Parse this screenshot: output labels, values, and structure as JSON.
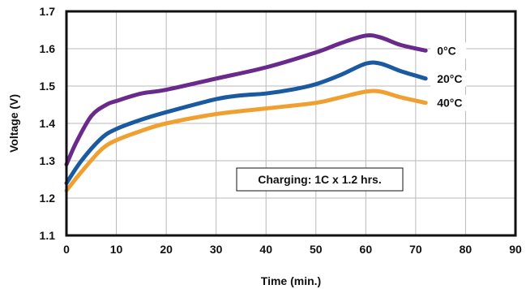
{
  "chart_data": {
    "type": "line",
    "xlabel": "Time (min.)",
    "ylabel": "Voltage (V)",
    "xlim": [
      0,
      90
    ],
    "ylim": [
      1.1,
      1.7
    ],
    "x_ticks": [
      "0",
      "10",
      "20",
      "30",
      "40",
      "50",
      "60",
      "70",
      "80",
      "90"
    ],
    "y_ticks": [
      "1.1",
      "1.2",
      "1.3",
      "1.4",
      "1.5",
      "1.6",
      "1.7"
    ],
    "grid": true,
    "annotation": "Charging: 1C x 1.2 hrs.",
    "series": [
      {
        "name": "0°C",
        "color": "#6a2a8c",
        "points": [
          [
            0,
            1.29
          ],
          [
            2,
            1.35
          ],
          [
            5,
            1.42
          ],
          [
            8,
            1.45
          ],
          [
            10,
            1.46
          ],
          [
            15,
            1.48
          ],
          [
            20,
            1.49
          ],
          [
            30,
            1.52
          ],
          [
            40,
            1.55
          ],
          [
            50,
            1.59
          ],
          [
            55,
            1.615
          ],
          [
            60,
            1.635
          ],
          [
            63,
            1.63
          ],
          [
            67,
            1.61
          ],
          [
            72,
            1.595
          ]
        ]
      },
      {
        "name": "20°C",
        "color": "#1a5aa0",
        "points": [
          [
            0,
            1.24
          ],
          [
            3,
            1.3
          ],
          [
            7,
            1.36
          ],
          [
            10,
            1.385
          ],
          [
            15,
            1.41
          ],
          [
            20,
            1.43
          ],
          [
            30,
            1.465
          ],
          [
            35,
            1.475
          ],
          [
            40,
            1.48
          ],
          [
            45,
            1.49
          ],
          [
            50,
            1.505
          ],
          [
            55,
            1.53
          ],
          [
            60,
            1.56
          ],
          [
            63,
            1.56
          ],
          [
            67,
            1.54
          ],
          [
            72,
            1.52
          ]
        ]
      },
      {
        "name": "40°C",
        "color": "#f0a030",
        "points": [
          [
            0,
            1.22
          ],
          [
            3,
            1.27
          ],
          [
            7,
            1.33
          ],
          [
            10,
            1.355
          ],
          [
            15,
            1.38
          ],
          [
            20,
            1.4
          ],
          [
            30,
            1.425
          ],
          [
            40,
            1.44
          ],
          [
            50,
            1.455
          ],
          [
            55,
            1.47
          ],
          [
            60,
            1.485
          ],
          [
            63,
            1.485
          ],
          [
            67,
            1.47
          ],
          [
            72,
            1.455
          ]
        ]
      }
    ]
  }
}
